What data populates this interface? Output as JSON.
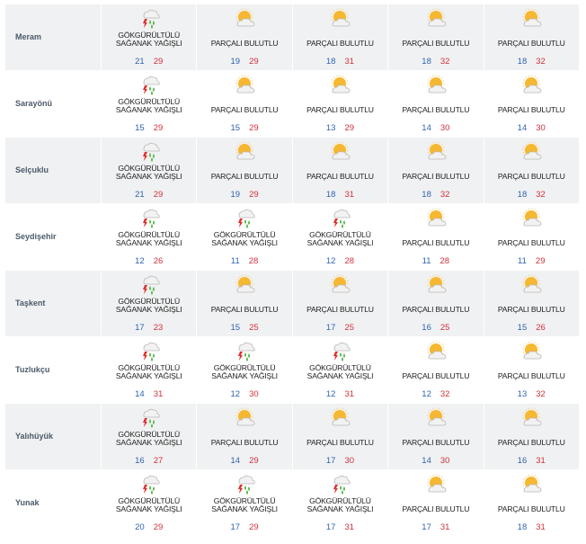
{
  "rows": [
    {
      "city": "Meram",
      "days": [
        {
          "icon": "thunderstorm-icon",
          "desc": [
            "GÖKGÜRÜLTÜLÜ",
            "SAĞANAK YAĞIŞLI"
          ],
          "low": "21",
          "high": "29"
        },
        {
          "icon": "partly-cloudy-icon",
          "desc": [
            "PARÇALI BULUTLU"
          ],
          "low": "19",
          "high": "29"
        },
        {
          "icon": "partly-cloudy-icon",
          "desc": [
            "PARÇALI BULUTLU"
          ],
          "low": "18",
          "high": "31"
        },
        {
          "icon": "partly-cloudy-icon",
          "desc": [
            "PARÇALI BULUTLU"
          ],
          "low": "18",
          "high": "32"
        },
        {
          "icon": "partly-cloudy-icon",
          "desc": [
            "PARÇALI BULUTLU"
          ],
          "low": "18",
          "high": "32"
        }
      ]
    },
    {
      "city": "Sarayönü",
      "days": [
        {
          "icon": "thunderstorm-icon",
          "desc": [
            "GÖKGÜRÜLTÜLÜ",
            "SAĞANAK YAĞIŞLI"
          ],
          "low": "15",
          "high": "29"
        },
        {
          "icon": "partly-cloudy-icon",
          "desc": [
            "PARÇALI BULUTLU"
          ],
          "low": "15",
          "high": "29"
        },
        {
          "icon": "partly-cloudy-icon",
          "desc": [
            "PARÇALI BULUTLU"
          ],
          "low": "13",
          "high": "29"
        },
        {
          "icon": "partly-cloudy-icon",
          "desc": [
            "PARÇALI BULUTLU"
          ],
          "low": "14",
          "high": "30"
        },
        {
          "icon": "partly-cloudy-icon",
          "desc": [
            "PARÇALI BULUTLU"
          ],
          "low": "14",
          "high": "30"
        }
      ]
    },
    {
      "city": "Selçuklu",
      "days": [
        {
          "icon": "thunderstorm-icon",
          "desc": [
            "GÖKGÜRÜLTÜLÜ",
            "SAĞANAK YAĞIŞLI"
          ],
          "low": "21",
          "high": "29"
        },
        {
          "icon": "partly-cloudy-icon",
          "desc": [
            "PARÇALI BULUTLU"
          ],
          "low": "19",
          "high": "29"
        },
        {
          "icon": "partly-cloudy-icon",
          "desc": [
            "PARÇALI BULUTLU"
          ],
          "low": "18",
          "high": "31"
        },
        {
          "icon": "partly-cloudy-icon",
          "desc": [
            "PARÇALI BULUTLU"
          ],
          "low": "18",
          "high": "32"
        },
        {
          "icon": "partly-cloudy-icon",
          "desc": [
            "PARÇALI BULUTLU"
          ],
          "low": "18",
          "high": "32"
        }
      ]
    },
    {
      "city": "Seydişehir",
      "days": [
        {
          "icon": "thunderstorm-icon",
          "desc": [
            "GÖKGÜRÜLTÜLÜ",
            "SAĞANAK YAĞIŞLI"
          ],
          "low": "12",
          "high": "26"
        },
        {
          "icon": "thunderstorm-icon",
          "desc": [
            "GÖKGÜRÜLTÜLÜ",
            "SAĞANAK YAĞIŞLI"
          ],
          "low": "11",
          "high": "28"
        },
        {
          "icon": "thunderstorm-icon",
          "desc": [
            "GÖKGÜRÜLTÜLÜ",
            "SAĞANAK YAĞIŞLI"
          ],
          "low": "12",
          "high": "28"
        },
        {
          "icon": "partly-cloudy-icon",
          "desc": [
            "PARÇALI BULUTLU"
          ],
          "low": "11",
          "high": "28"
        },
        {
          "icon": "partly-cloudy-icon",
          "desc": [
            "PARÇALI BULUTLU"
          ],
          "low": "11",
          "high": "29"
        }
      ]
    },
    {
      "city": "Taşkent",
      "days": [
        {
          "icon": "thunderstorm-icon",
          "desc": [
            "GÖKGÜRÜLTÜLÜ",
            "SAĞANAK YAĞIŞLI"
          ],
          "low": "17",
          "high": "23"
        },
        {
          "icon": "partly-cloudy-icon",
          "desc": [
            "PARÇALI BULUTLU"
          ],
          "low": "15",
          "high": "25"
        },
        {
          "icon": "partly-cloudy-icon",
          "desc": [
            "PARÇALI BULUTLU"
          ],
          "low": "17",
          "high": "25"
        },
        {
          "icon": "partly-cloudy-icon",
          "desc": [
            "PARÇALI BULUTLU"
          ],
          "low": "16",
          "high": "25"
        },
        {
          "icon": "partly-cloudy-icon",
          "desc": [
            "PARÇALI BULUTLU"
          ],
          "low": "15",
          "high": "26"
        }
      ]
    },
    {
      "city": "Tuzlukçu",
      "days": [
        {
          "icon": "thunderstorm-icon",
          "desc": [
            "GÖKGÜRÜLTÜLÜ",
            "SAĞANAK YAĞIŞLI"
          ],
          "low": "14",
          "high": "31"
        },
        {
          "icon": "thunderstorm-icon",
          "desc": [
            "GÖKGÜRÜLTÜLÜ",
            "SAĞANAK YAĞIŞLI"
          ],
          "low": "12",
          "high": "30"
        },
        {
          "icon": "thunderstorm-icon",
          "desc": [
            "GÖKGÜRÜLTÜLÜ",
            "SAĞANAK YAĞIŞLI"
          ],
          "low": "12",
          "high": "31"
        },
        {
          "icon": "partly-cloudy-icon",
          "desc": [
            "PARÇALI BULUTLU"
          ],
          "low": "12",
          "high": "32"
        },
        {
          "icon": "partly-cloudy-icon",
          "desc": [
            "PARÇALI BULUTLU"
          ],
          "low": "13",
          "high": "32"
        }
      ]
    },
    {
      "city": "Yalıhüyük",
      "days": [
        {
          "icon": "thunderstorm-icon",
          "desc": [
            "GÖKGÜRÜLTÜLÜ",
            "SAĞANAK YAĞIŞLI"
          ],
          "low": "16",
          "high": "27"
        },
        {
          "icon": "partly-cloudy-icon",
          "desc": [
            "PARÇALI BULUTLU"
          ],
          "low": "14",
          "high": "29"
        },
        {
          "icon": "partly-cloudy-icon",
          "desc": [
            "PARÇALI BULUTLU"
          ],
          "low": "17",
          "high": "30"
        },
        {
          "icon": "partly-cloudy-icon",
          "desc": [
            "PARÇALI BULUTLU"
          ],
          "low": "14",
          "high": "30"
        },
        {
          "icon": "partly-cloudy-icon",
          "desc": [
            "PARÇALI BULUTLU"
          ],
          "low": "16",
          "high": "31"
        }
      ]
    },
    {
      "city": "Yunak",
      "days": [
        {
          "icon": "thunderstorm-icon",
          "desc": [
            "GÖKGÜRÜLTÜLÜ",
            "SAĞANAK YAĞIŞLI"
          ],
          "low": "20",
          "high": "29"
        },
        {
          "icon": "thunderstorm-icon",
          "desc": [
            "GÖKGÜRÜLTÜLÜ",
            "SAĞANAK YAĞIŞLI"
          ],
          "low": "17",
          "high": "29"
        },
        {
          "icon": "thunderstorm-icon",
          "desc": [
            "GÖKGÜRÜLTÜLÜ",
            "SAĞANAK YAĞIŞLI"
          ],
          "low": "17",
          "high": "31"
        },
        {
          "icon": "partly-cloudy-icon",
          "desc": [
            "PARÇALI BULUTLU"
          ],
          "low": "17",
          "high": "31"
        },
        {
          "icon": "partly-cloudy-icon",
          "desc": [
            "PARÇALI BULUTLU"
          ],
          "low": "18",
          "high": "31"
        }
      ]
    }
  ],
  "colors": {
    "low": "#2f63b0",
    "high": "#d2323c",
    "shade": "#f0f1f2",
    "city": "#4b5a6a"
  }
}
